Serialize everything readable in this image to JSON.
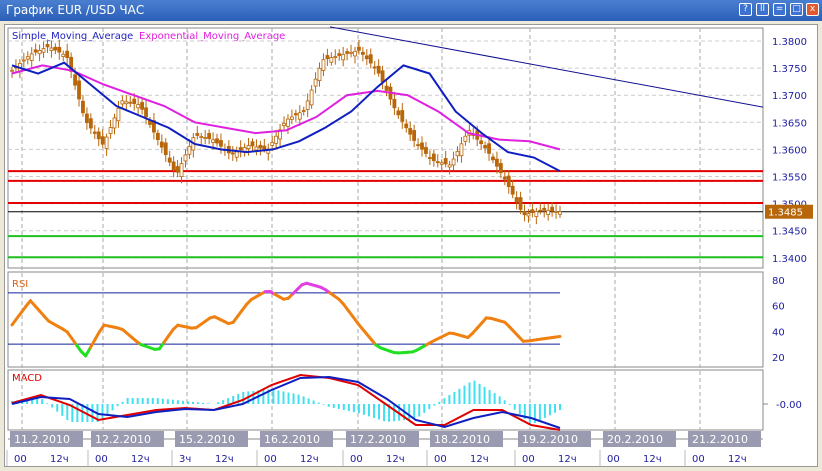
{
  "window": {
    "title": "График EUR /USD  ЧАС",
    "buttons": [
      "?",
      "ll",
      "=",
      "□",
      "x"
    ]
  },
  "legend": {
    "sma": "Simple_Moving_Average",
    "ema": "Exponential_Moving_Average"
  },
  "colors": {
    "candle": "#b8660a",
    "sma": "#1020c0",
    "ema": "#e020e0",
    "resistance": "#e00000",
    "support": "#20c020",
    "current": "#000000",
    "trend": "#101090",
    "rsi": "#f08010",
    "rsi_low": "#20e020",
    "rsi_high": "#e040e0",
    "macd": "#e00000",
    "signal": "#1020c0",
    "hist": "#40e0f0",
    "datebox": "#9a9ab0"
  },
  "price_axis": {
    "ticks": [
      "1.3800",
      "1.3750",
      "1.3700",
      "1.3650",
      "1.3600",
      "1.3550",
      "1.3500",
      "1.3450",
      "1.3400"
    ],
    "current": "1.3485"
  },
  "levels": {
    "resistance": [
      1.356,
      1.3542,
      1.3501
    ],
    "current": 1.3485,
    "support": [
      1.344,
      1.3401
    ],
    "trend": [
      1.3826,
      1.3678
    ]
  },
  "price_close": [
    1.3746,
    1.3775,
    1.379,
    1.3772,
    1.3654,
    1.3608,
    1.369,
    1.3682,
    1.3617,
    1.3553,
    1.3627,
    1.3618,
    1.359,
    1.3608,
    1.3599,
    1.3654,
    1.3672,
    1.3765,
    1.3774,
    1.3783,
    1.3746,
    1.3672,
    1.3617,
    1.358,
    1.3571,
    1.3636,
    1.3599,
    1.3544,
    1.3479,
    1.3488,
    1.3485
  ],
  "sma": [
    1.3755,
    1.374,
    1.376,
    1.372,
    1.368,
    1.366,
    1.364,
    1.361,
    1.36,
    1.3595,
    1.36,
    1.3615,
    1.364,
    1.367,
    1.3715,
    1.3755,
    1.374,
    1.367,
    1.363,
    1.3595,
    1.3585,
    1.356
  ],
  "ema": [
    1.374,
    1.3755,
    1.3745,
    1.372,
    1.37,
    1.368,
    1.365,
    1.364,
    1.363,
    1.3635,
    1.366,
    1.37,
    1.3708,
    1.37,
    1.367,
    1.363,
    1.3618,
    1.3615,
    1.36
  ],
  "rsi": {
    "label": "RSI",
    "ticks": [
      "80",
      "60",
      "40",
      "20"
    ],
    "levels": [
      70,
      30
    ],
    "values": [
      45,
      64,
      48,
      40,
      20,
      45,
      42,
      30,
      25,
      45,
      42,
      52,
      45,
      64,
      72,
      64,
      78,
      74,
      64,
      45,
      28,
      23,
      24,
      32,
      39,
      35,
      51,
      47,
      32,
      34,
      36
    ]
  },
  "macd": {
    "label": "MACD",
    "tick": "-0.00",
    "main": [
      0.0001,
      0.0009,
      -0.0001,
      -0.0016,
      -0.0011,
      -0.0006,
      -0.0004,
      -0.0006,
      0.0004,
      0.0019,
      0.0029,
      0.0026,
      0.0019,
      -0.0001,
      -0.0021,
      -0.0021,
      -0.0006,
      -0.0006,
      -0.0021,
      -0.0026
    ],
    "signal": [
      0.0,
      0.0007,
      0.0005,
      -0.001,
      -0.0013,
      -0.0008,
      -0.0005,
      -0.0006,
      0.0,
      0.0014,
      0.0026,
      0.0027,
      0.0022,
      0.0005,
      -0.0016,
      -0.0023,
      -0.0014,
      -0.0008,
      -0.0014,
      -0.0024
    ]
  },
  "dates": [
    "11.2.2010",
    "12.2.2010",
    "15.2.2010",
    "16.2.2010",
    "17.2.2010",
    "18.2.2010",
    "19.2.2010",
    "20.2.2010",
    "21.2.2010"
  ],
  "hours": [
    [
      "00",
      "12ч"
    ],
    [
      "00",
      "12ч"
    ],
    [
      "3ч",
      "12ч"
    ],
    [
      "00",
      "12ч"
    ],
    [
      "00",
      "12ч"
    ],
    [
      "00",
      "12ч"
    ],
    [
      "00",
      "12ч"
    ],
    [
      "00",
      "12ч"
    ],
    [
      "00",
      "12ч"
    ]
  ]
}
